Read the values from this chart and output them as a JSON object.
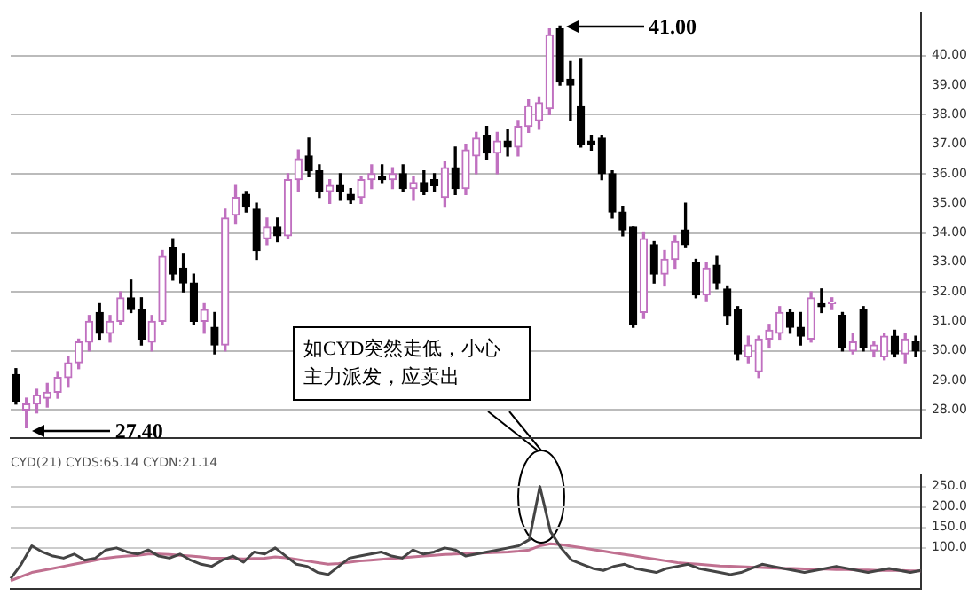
{
  "chart_data": [
    {
      "type": "candlestick",
      "annotations": [
        "41.00",
        "27.40",
        "如CYD突然走低，小心主力派发，应卖出"
      ],
      "categories": [
        null,
        null,
        null,
        null,
        null,
        null,
        null,
        null,
        null,
        null,
        null,
        null,
        null,
        null,
        null,
        null,
        null,
        null,
        null,
        null,
        null,
        null,
        null,
        null,
        null,
        null,
        null,
        null,
        null,
        null,
        null,
        null,
        null,
        null,
        null,
        null,
        null,
        null,
        null,
        null,
        null,
        null,
        null,
        null,
        null,
        null,
        null,
        null,
        null,
        null,
        null,
        null,
        null,
        null,
        null,
        null,
        null,
        null,
        null,
        null,
        null,
        null,
        null,
        null,
        null,
        null,
        null,
        null,
        null,
        null,
        null,
        null,
        null,
        null,
        null,
        null,
        null,
        null,
        null,
        null,
        null,
        null,
        null,
        null,
        null,
        null,
        null
      ],
      "ohlc": [
        [
          29.2,
          29.4,
          28.2,
          28.3
        ],
        [
          28.0,
          28.4,
          27.4,
          28.2
        ],
        [
          28.2,
          28.7,
          27.9,
          28.5
        ],
        [
          28.4,
          28.9,
          28.1,
          28.6
        ],
        [
          28.6,
          29.3,
          28.4,
          29.1
        ],
        [
          29.1,
          29.8,
          28.8,
          29.6
        ],
        [
          29.6,
          30.4,
          29.4,
          30.3
        ],
        [
          30.3,
          31.2,
          30.0,
          31.0
        ],
        [
          31.3,
          31.6,
          30.4,
          30.6
        ],
        [
          30.6,
          31.2,
          30.3,
          31.0
        ],
        [
          31.0,
          32.0,
          30.9,
          31.8
        ],
        [
          31.8,
          32.4,
          31.3,
          31.4
        ],
        [
          31.4,
          31.8,
          30.2,
          30.4
        ],
        [
          30.3,
          31.2,
          30.0,
          31.0
        ],
        [
          31.0,
          33.4,
          30.9,
          33.2
        ],
        [
          33.5,
          33.8,
          32.4,
          32.6
        ],
        [
          32.8,
          33.3,
          32.0,
          32.3
        ],
        [
          32.3,
          32.6,
          30.9,
          31.0
        ],
        [
          31.0,
          31.6,
          30.6,
          31.4
        ],
        [
          30.8,
          31.3,
          29.9,
          30.2
        ],
        [
          30.2,
          34.8,
          30.0,
          34.5
        ],
        [
          34.6,
          35.6,
          34.3,
          35.2
        ],
        [
          35.3,
          35.4,
          34.7,
          34.9
        ],
        [
          34.8,
          35.0,
          33.1,
          33.4
        ],
        [
          33.8,
          34.5,
          33.6,
          34.2
        ],
        [
          34.2,
          34.5,
          33.7,
          33.9
        ],
        [
          33.9,
          36.0,
          33.8,
          35.8
        ],
        [
          35.8,
          36.8,
          35.4,
          36.5
        ],
        [
          36.6,
          37.2,
          35.9,
          36.1
        ],
        [
          36.1,
          36.3,
          35.2,
          35.4
        ],
        [
          35.4,
          35.8,
          35.0,
          35.6
        ],
        [
          35.6,
          36.0,
          35.1,
          35.4
        ],
        [
          35.3,
          35.5,
          35.0,
          35.1
        ],
        [
          35.2,
          35.9,
          35.0,
          35.8
        ],
        [
          35.8,
          36.3,
          35.5,
          36.0
        ],
        [
          35.9,
          36.3,
          35.7,
          35.8
        ],
        [
          35.8,
          36.2,
          35.5,
          36.0
        ],
        [
          36.0,
          36.3,
          35.4,
          35.5
        ],
        [
          35.5,
          35.9,
          35.1,
          35.7
        ],
        [
          35.7,
          36.1,
          35.3,
          35.4
        ],
        [
          35.8,
          36.0,
          35.4,
          35.6
        ],
        [
          35.2,
          36.4,
          34.9,
          36.2
        ],
        [
          36.2,
          36.9,
          35.3,
          35.5
        ],
        [
          35.5,
          37.0,
          35.3,
          36.8
        ],
        [
          36.6,
          37.4,
          36.0,
          37.2
        ],
        [
          37.3,
          37.6,
          36.5,
          36.7
        ],
        [
          36.7,
          37.4,
          36.0,
          37.1
        ],
        [
          37.1,
          37.5,
          36.6,
          36.9
        ],
        [
          36.9,
          37.8,
          36.6,
          37.6
        ],
        [
          37.6,
          38.5,
          37.4,
          38.3
        ],
        [
          37.8,
          38.6,
          37.5,
          38.4
        ],
        [
          38.2,
          40.9,
          38.0,
          40.7
        ],
        [
          40.9,
          41.0,
          39.0,
          39.1
        ],
        [
          39.2,
          39.8,
          37.8,
          39.0
        ],
        [
          38.3,
          39.9,
          36.9,
          37.0
        ],
        [
          37.1,
          37.3,
          36.8,
          37.0
        ],
        [
          37.2,
          37.3,
          35.8,
          36.0
        ],
        [
          36.0,
          36.1,
          34.5,
          34.7
        ],
        [
          34.7,
          34.9,
          33.9,
          34.1
        ],
        [
          34.2,
          34.2,
          30.8,
          30.9
        ],
        [
          31.3,
          34.0,
          31.1,
          33.8
        ],
        [
          33.6,
          33.7,
          32.3,
          32.6
        ],
        [
          32.6,
          33.4,
          32.2,
          33.1
        ],
        [
          33.1,
          33.9,
          32.8,
          33.7
        ],
        [
          34.1,
          35.0,
          33.5,
          33.6
        ],
        [
          33.0,
          33.1,
          31.8,
          31.9
        ],
        [
          31.9,
          33.0,
          31.7,
          32.8
        ],
        [
          32.9,
          33.2,
          32.1,
          32.3
        ],
        [
          32.1,
          32.2,
          30.9,
          31.2
        ],
        [
          31.4,
          31.5,
          29.7,
          29.9
        ],
        [
          29.8,
          30.5,
          29.6,
          30.2
        ],
        [
          29.3,
          30.5,
          29.1,
          30.4
        ],
        [
          30.4,
          30.9,
          30.1,
          30.7
        ],
        [
          30.6,
          31.5,
          30.4,
          31.3
        ],
        [
          31.3,
          31.4,
          30.6,
          30.8
        ],
        [
          30.8,
          31.3,
          30.2,
          30.5
        ],
        [
          30.4,
          32.0,
          30.3,
          31.8
        ],
        [
          31.6,
          32.1,
          31.3,
          31.5
        ],
        [
          31.6,
          31.8,
          31.4,
          31.6
        ],
        [
          31.2,
          31.3,
          30.0,
          30.1
        ],
        [
          30.0,
          30.6,
          29.9,
          30.3
        ],
        [
          31.4,
          31.5,
          30.0,
          30.1
        ],
        [
          30.0,
          30.3,
          29.8,
          30.2
        ],
        [
          29.8,
          30.6,
          29.7,
          30.5
        ],
        [
          30.5,
          30.7,
          29.8,
          29.9
        ],
        [
          29.9,
          30.6,
          29.6,
          30.4
        ],
        [
          30.3,
          30.5,
          29.8,
          30.0
        ]
      ],
      "ylim": [
        27.05,
        41.45
      ],
      "yticks": [
        {
          "value": 28,
          "label": "28.00"
        },
        {
          "value": 29,
          "label": "29.00"
        },
        {
          "value": 30,
          "label": "30.00"
        },
        {
          "value": 31,
          "label": "31.00"
        },
        {
          "value": 32,
          "label": "32.00"
        },
        {
          "value": 33,
          "label": "33.00"
        },
        {
          "value": 34,
          "label": "34.00"
        },
        {
          "value": 35,
          "label": "35.00"
        },
        {
          "value": 36,
          "label": "36.00"
        },
        {
          "value": 37,
          "label": "37.00"
        },
        {
          "value": 38,
          "label": "38.00"
        },
        {
          "value": 39,
          "label": "39.00"
        },
        {
          "value": 40,
          "label": "40.00"
        }
      ],
      "grid": "y",
      "tick_labels": "y"
    },
    {
      "type": "line",
      "title": "CYD(21) CYDS:65.14 CYDN:21.14",
      "categories": [
        null,
        null,
        null,
        null,
        null,
        null,
        null,
        null,
        null,
        null,
        null,
        null,
        null,
        null,
        null,
        null,
        null,
        null,
        null,
        null,
        null,
        null,
        null,
        null,
        null,
        null,
        null,
        null,
        null,
        null,
        null,
        null,
        null,
        null,
        null,
        null,
        null,
        null,
        null,
        null,
        null,
        null,
        null,
        null,
        null,
        null,
        null,
        null,
        null,
        null,
        null,
        null,
        null,
        null,
        null,
        null,
        null,
        null,
        null,
        null,
        null,
        null,
        null,
        null,
        null,
        null,
        null,
        null,
        null,
        null,
        null,
        null,
        null,
        null,
        null,
        null,
        null,
        null,
        null,
        null,
        null,
        null,
        null,
        null,
        null,
        null,
        null
      ],
      "series": [
        {
          "color": "#444444",
          "values": [
            25,
            60,
            105,
            90,
            80,
            75,
            85,
            70,
            75,
            95,
            100,
            90,
            85,
            95,
            80,
            75,
            85,
            70,
            60,
            55,
            70,
            80,
            65,
            90,
            85,
            100,
            80,
            60,
            55,
            40,
            35,
            55,
            75,
            80,
            85,
            90,
            80,
            75,
            95,
            85,
            90,
            100,
            95,
            80,
            85,
            90,
            95,
            100,
            105,
            120,
            250,
            140,
            100,
            70,
            60,
            50,
            45,
            55,
            60,
            50,
            45,
            40,
            50,
            55,
            60,
            50,
            45,
            40,
            35,
            40,
            50,
            60,
            55,
            50,
            45,
            40,
            45,
            50,
            55,
            50,
            45,
            40,
            45,
            50,
            45,
            40,
            45
          ]
        },
        {
          "color": "#c07090",
          "values": [
            20,
            30,
            40,
            45,
            50,
            55,
            60,
            65,
            70,
            75,
            78,
            80,
            82,
            85,
            85,
            84,
            82,
            80,
            78,
            75,
            75,
            74,
            73,
            74,
            75,
            78,
            76,
            72,
            68,
            64,
            60,
            62,
            65,
            68,
            70,
            72,
            74,
            76,
            78,
            80,
            82,
            84,
            85,
            86,
            87,
            88,
            89,
            90,
            92,
            95,
            105,
            110,
            108,
            104,
            100,
            96,
            92,
            88,
            84,
            80,
            76,
            72,
            68,
            64,
            62,
            60,
            58,
            56,
            55,
            54,
            53,
            52,
            51,
            50,
            50,
            49,
            48,
            48,
            47,
            47,
            46,
            46,
            45,
            45,
            45,
            44,
            44
          ]
        }
      ],
      "ylim": [
        0,
        280
      ],
      "yticks": [
        {
          "value": 100,
          "label": "100.0"
        },
        {
          "value": 150,
          "label": "150.0"
        },
        {
          "value": 200,
          "label": "200.0"
        },
        {
          "value": 250,
          "label": "250.0"
        }
      ],
      "grid": "y",
      "tick_labels": "y"
    }
  ]
}
